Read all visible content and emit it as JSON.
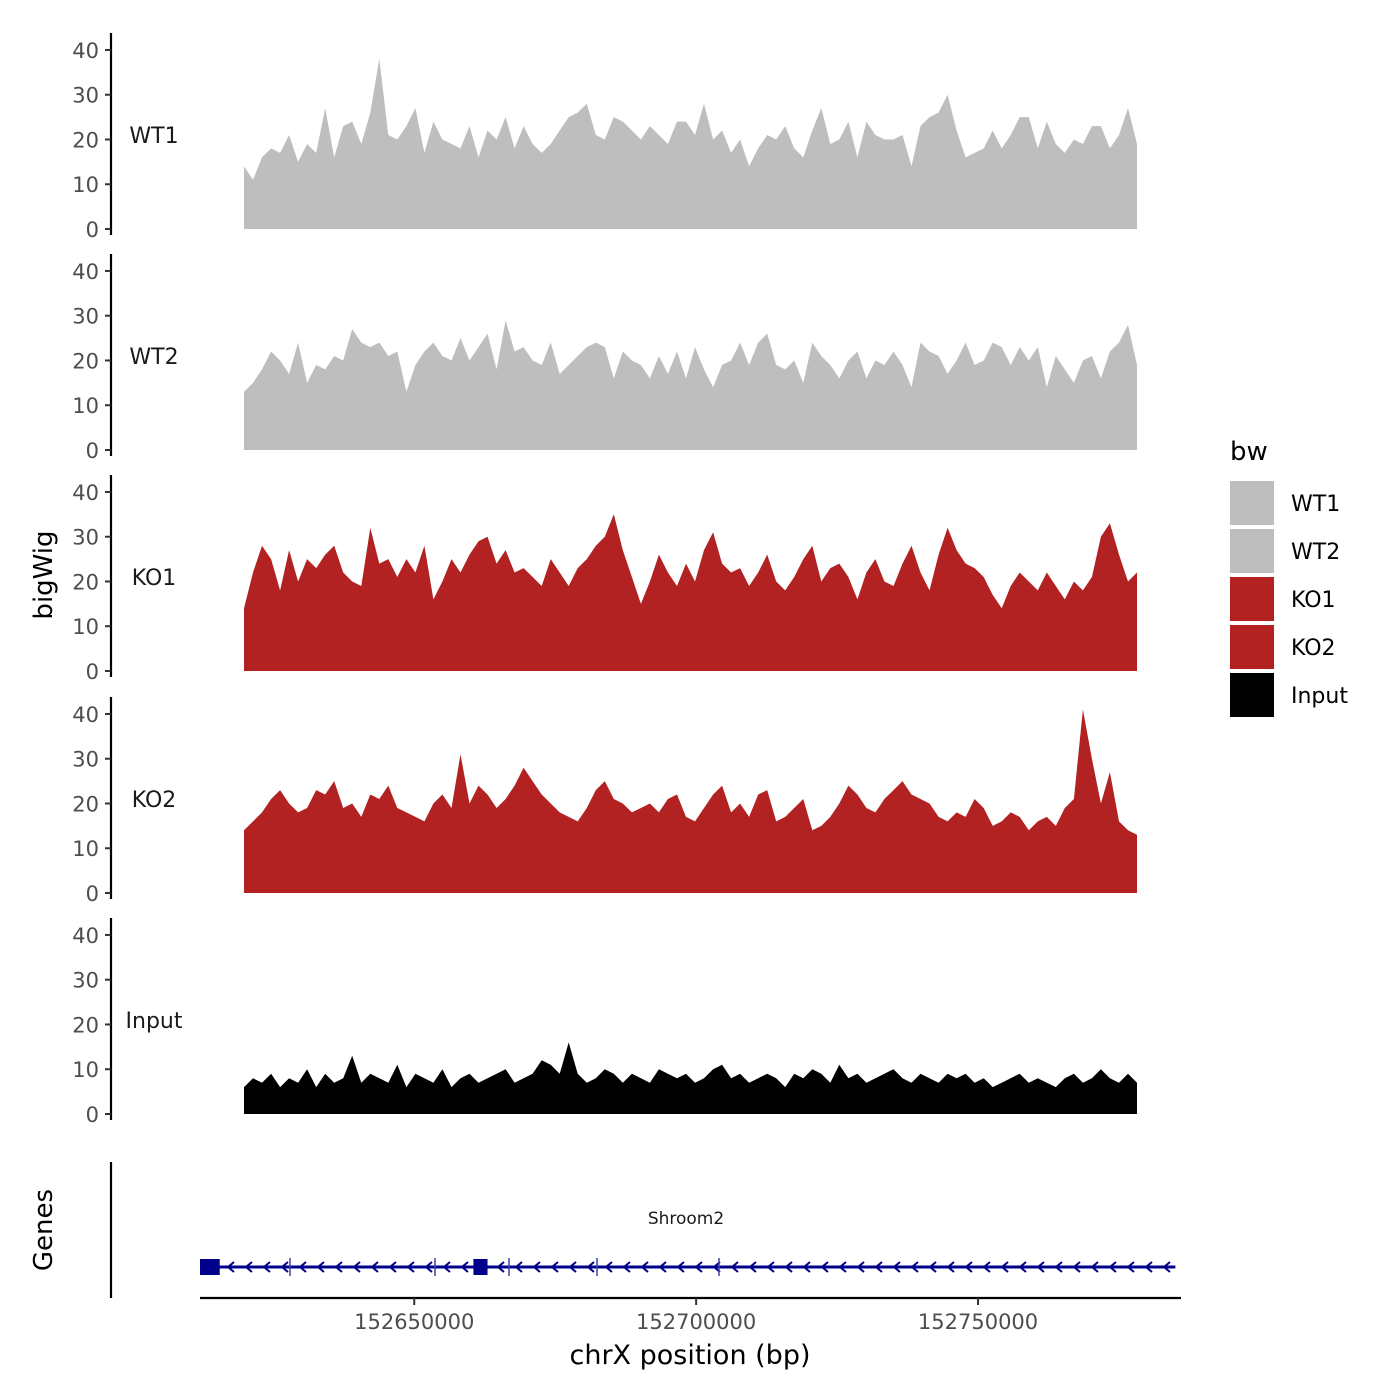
{
  "chart_data": {
    "type": "area",
    "title": "",
    "ylabel": "bigWig",
    "gene_panel_label": "Genes",
    "xlabel": "chrX position (bp)",
    "x_range": [
      152612000,
      152786000
    ],
    "x_ticks": [
      152650000,
      152700000,
      152750000
    ],
    "x_tick_labels": [
      "152650000",
      "152700000",
      "152750000"
    ],
    "y_range": [
      0,
      42
    ],
    "y_ticks": [
      0,
      10,
      20,
      30,
      40
    ],
    "y_tick_labels": [
      "0",
      "10",
      "20",
      "30",
      "40"
    ],
    "legend": {
      "title": "bw",
      "position": "right",
      "entries": [
        {
          "label": "WT1",
          "color": "#bebebe"
        },
        {
          "label": "WT2",
          "color": "#bebebe"
        },
        {
          "label": "KO1",
          "color": "#b22222"
        },
        {
          "label": "KO2",
          "color": "#b22222"
        },
        {
          "label": "Input",
          "color": "#000000"
        }
      ]
    },
    "series": [
      {
        "name": "WT1",
        "color": "#bebebe",
        "values": [
          14,
          11,
          16,
          18,
          17,
          21,
          15,
          19,
          17,
          27,
          16,
          23,
          24,
          19,
          26,
          38,
          21,
          20,
          23,
          27,
          17,
          24,
          20,
          19,
          18,
          23,
          16,
          22,
          20,
          25,
          18,
          23,
          19,
          17,
          19,
          22,
          25,
          26,
          28,
          21,
          20,
          25,
          24,
          22,
          20,
          23,
          21,
          19,
          24,
          24,
          21,
          28,
          20,
          22,
          17,
          20,
          14,
          18,
          21,
          20,
          23,
          18,
          16,
          22,
          27,
          19,
          20,
          24,
          16,
          24,
          21,
          20,
          20,
          21,
          14,
          23,
          25,
          26,
          30,
          22,
          16,
          17,
          18,
          22,
          18,
          21,
          25,
          25,
          18,
          24,
          19,
          17,
          20,
          19,
          23,
          23,
          18,
          21,
          27,
          19
        ]
      },
      {
        "name": "WT2",
        "color": "#bebebe",
        "values": [
          13,
          15,
          18,
          22,
          20,
          17,
          24,
          15,
          19,
          18,
          21,
          20,
          27,
          24,
          23,
          24,
          21,
          22,
          13,
          19,
          22,
          24,
          21,
          20,
          25,
          20,
          23,
          26,
          18,
          29,
          22,
          23,
          20,
          19,
          24,
          17,
          19,
          21,
          23,
          24,
          23,
          16,
          22,
          20,
          19,
          16,
          21,
          17,
          22,
          16,
          23,
          18,
          14,
          19,
          20,
          24,
          19,
          24,
          26,
          19,
          18,
          20,
          15,
          24,
          21,
          19,
          16,
          20,
          22,
          16,
          20,
          19,
          22,
          19,
          14,
          24,
          22,
          21,
          17,
          20,
          24,
          19,
          20,
          24,
          23,
          19,
          23,
          20,
          23,
          14,
          21,
          18,
          15,
          20,
          21,
          16,
          22,
          24,
          28,
          19
        ]
      },
      {
        "name": "KO1",
        "color": "#b22222",
        "values": [
          14,
          22,
          28,
          25,
          18,
          27,
          20,
          25,
          23,
          26,
          28,
          22,
          20,
          19,
          32,
          24,
          25,
          21,
          25,
          22,
          28,
          16,
          20,
          25,
          22,
          26,
          29,
          30,
          24,
          27,
          22,
          23,
          21,
          19,
          25,
          22,
          19,
          23,
          25,
          28,
          30,
          35,
          27,
          21,
          15,
          20,
          26,
          22,
          19,
          24,
          20,
          27,
          31,
          24,
          22,
          23,
          19,
          22,
          26,
          20,
          18,
          21,
          25,
          28,
          20,
          23,
          24,
          21,
          16,
          22,
          25,
          20,
          19,
          24,
          28,
          22,
          18,
          26,
          32,
          27,
          24,
          23,
          21,
          17,
          14,
          19,
          22,
          20,
          18,
          22,
          19,
          16,
          20,
          18,
          21,
          30,
          33,
          26,
          20,
          22
        ]
      },
      {
        "name": "KO2",
        "color": "#b22222",
        "values": [
          14,
          16,
          18,
          21,
          23,
          20,
          18,
          19,
          23,
          22,
          25,
          19,
          20,
          17,
          22,
          21,
          24,
          19,
          18,
          17,
          16,
          20,
          22,
          19,
          31,
          20,
          24,
          22,
          19,
          21,
          24,
          28,
          25,
          22,
          20,
          18,
          17,
          16,
          19,
          23,
          25,
          21,
          20,
          18,
          19,
          20,
          18,
          21,
          22,
          17,
          16,
          19,
          22,
          24,
          18,
          20,
          17,
          22,
          23,
          16,
          17,
          19,
          21,
          14,
          15,
          17,
          20,
          24,
          22,
          19,
          18,
          21,
          23,
          25,
          22,
          21,
          20,
          17,
          16,
          18,
          17,
          21,
          19,
          15,
          16,
          18,
          17,
          14,
          16,
          17,
          15,
          19,
          21,
          41,
          30,
          20,
          27,
          16,
          14,
          13
        ]
      },
      {
        "name": "Input",
        "color": "#000000",
        "values": [
          6,
          8,
          7,
          9,
          6,
          8,
          7,
          10,
          6,
          9,
          7,
          8,
          13,
          7,
          9,
          8,
          7,
          11,
          6,
          9,
          8,
          7,
          10,
          6,
          8,
          9,
          7,
          8,
          9,
          10,
          7,
          8,
          9,
          12,
          11,
          9,
          16,
          9,
          7,
          8,
          10,
          9,
          7,
          9,
          8,
          7,
          10,
          9,
          8,
          9,
          7,
          8,
          10,
          11,
          8,
          9,
          7,
          8,
          9,
          8,
          6,
          9,
          8,
          10,
          9,
          7,
          11,
          8,
          9,
          7,
          8,
          9,
          10,
          8,
          7,
          9,
          8,
          7,
          9,
          8,
          9,
          7,
          8,
          6,
          7,
          8,
          9,
          7,
          8,
          7,
          6,
          8,
          9,
          7,
          8,
          10,
          8,
          7,
          9,
          7
        ]
      }
    ],
    "genes": [
      {
        "name": "Shroom2",
        "start": 152612000,
        "end": 152785000,
        "strand": "-",
        "exons": [
          [
            152612000,
            152615500
          ],
          [
            152660500,
            152663000
          ]
        ]
      }
    ]
  }
}
